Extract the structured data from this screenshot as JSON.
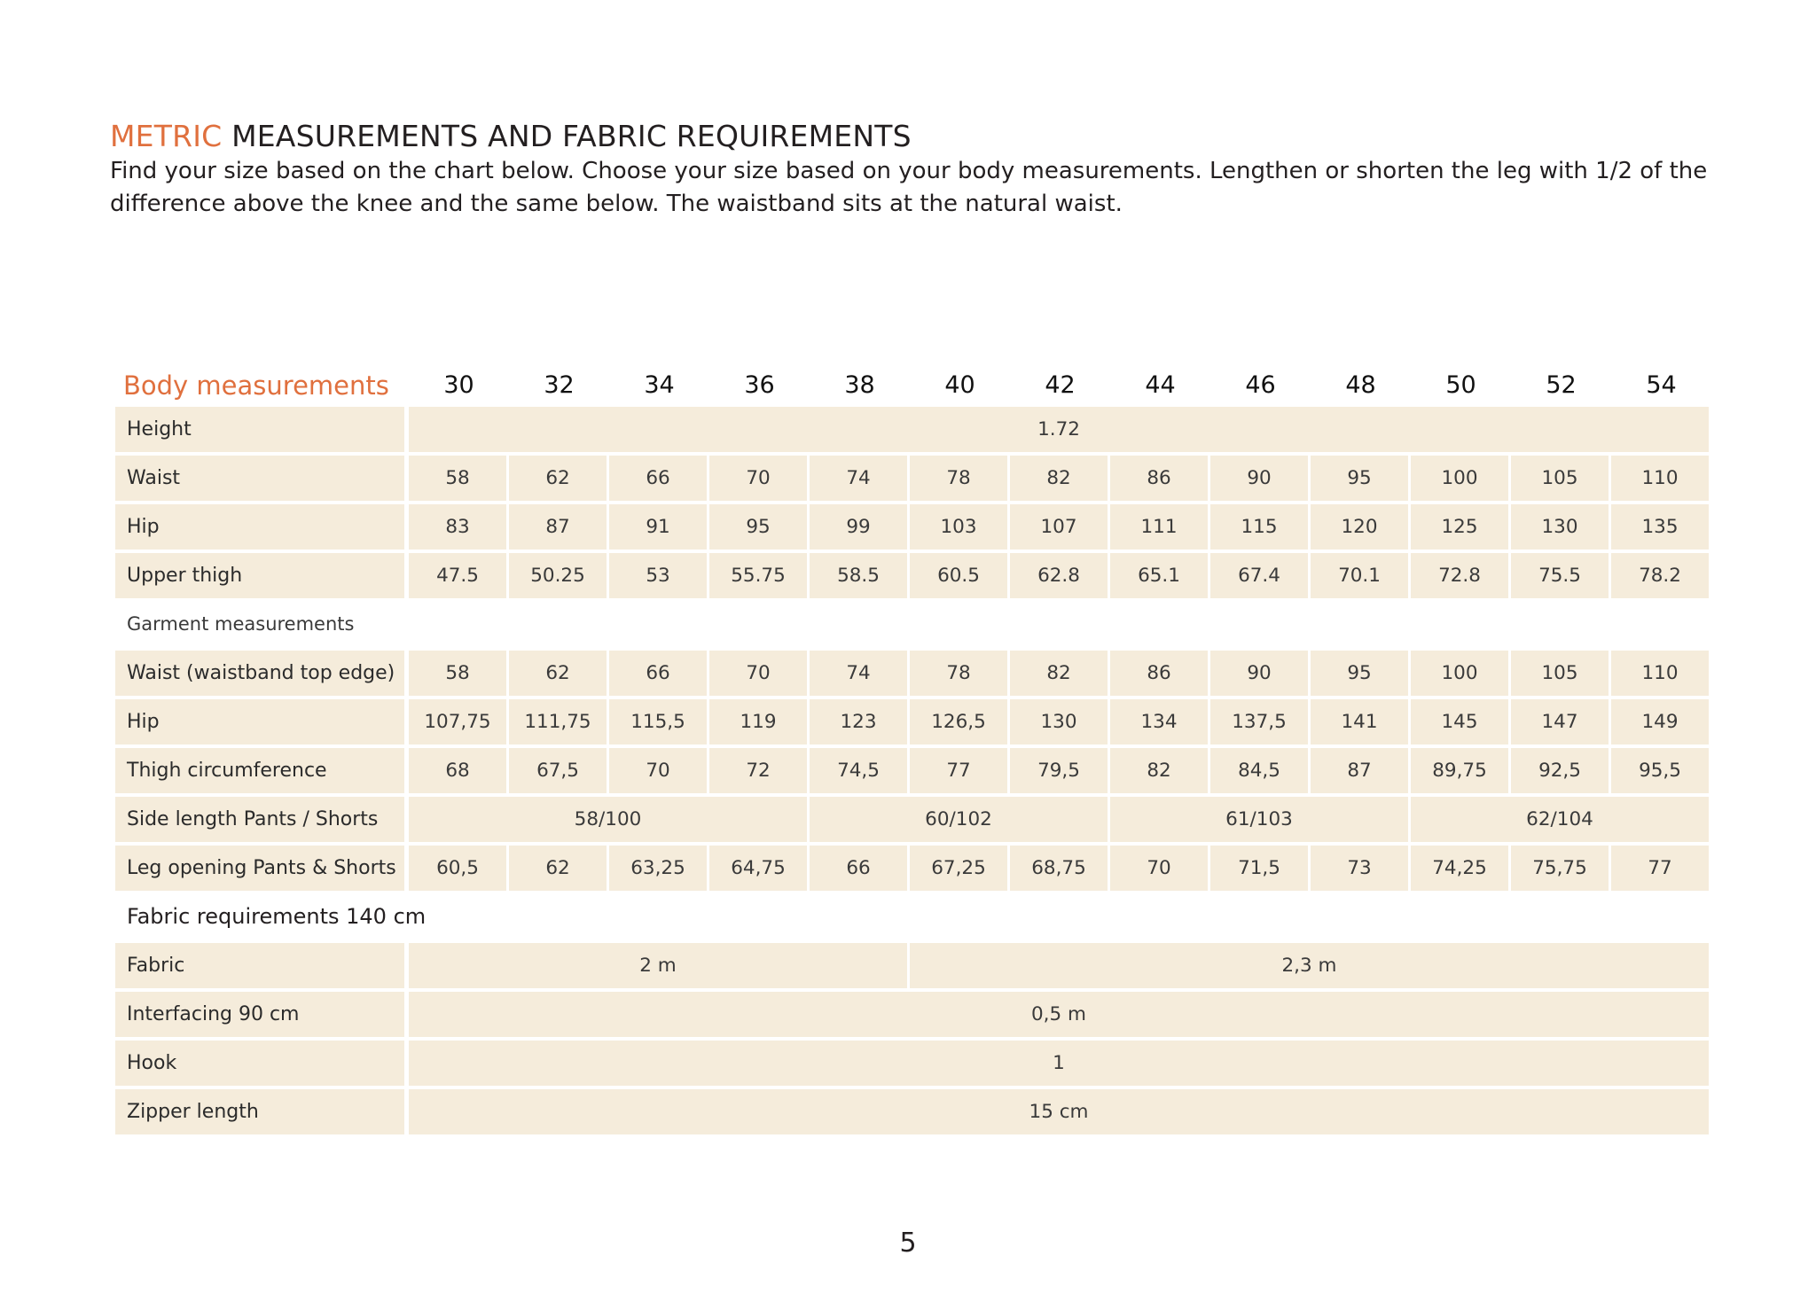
{
  "heading": {
    "accent": "METRIC",
    "rest": " MEASUREMENTS AND FABRIC REQUIREMENTS",
    "intro": "Find your size based on the chart below. Choose your size based on your body measurements. Lengthen or shorten the leg with 1/2 of the difference above the knee and the same below. The waistband sits at the natural waist."
  },
  "table": {
    "corner_label": "Body measurements",
    "sizes": [
      "30",
      "32",
      "34",
      "36",
      "38",
      "40",
      "42",
      "44",
      "46",
      "48",
      "50",
      "52",
      "54"
    ],
    "sections": [
      {
        "title": "",
        "rows": [
          {
            "label": "Height",
            "cells": [
              {
                "span": 13,
                "value": "1.72"
              }
            ]
          },
          {
            "label": "Waist",
            "values": [
              "58",
              "62",
              "66",
              "70",
              "74",
              "78",
              "82",
              "86",
              "90",
              "95",
              "100",
              "105",
              "110"
            ]
          },
          {
            "label": "Hip",
            "values": [
              "83",
              "87",
              "91",
              "95",
              "99",
              "103",
              "107",
              "111",
              "115",
              "120",
              "125",
              "130",
              "135"
            ]
          },
          {
            "label": "Upper thigh",
            "values": [
              "47.5",
              "50.25",
              "53",
              "55.75",
              "58.5",
              "60.5",
              "62.8",
              "65.1",
              "67.4",
              "70.1",
              "72.8",
              "75.5",
              "78.2"
            ]
          }
        ]
      },
      {
        "title": "Garment measurements",
        "rows": [
          {
            "label": "Waist (waistband top edge)",
            "values": [
              "58",
              "62",
              "66",
              "70",
              "74",
              "78",
              "82",
              "86",
              "90",
              "95",
              "100",
              "105",
              "110"
            ]
          },
          {
            "label": "Hip",
            "values": [
              "107,75",
              "111,75",
              "115,5",
              "119",
              "123",
              "126,5",
              "130",
              "134",
              "137,5",
              "141",
              "145",
              "147",
              "149"
            ]
          },
          {
            "label": "Thigh circumference",
            "values": [
              "68",
              "67,5",
              "70",
              "72",
              "74,5",
              "77",
              "79,5",
              "82",
              "84,5",
              "87",
              "89,75",
              "92,5",
              "95,5"
            ]
          },
          {
            "label": "Side length Pants / Shorts",
            "cells": [
              {
                "span": 4,
                "value": "58/100"
              },
              {
                "span": 3,
                "value": "60/102"
              },
              {
                "span": 3,
                "value": "61/103"
              },
              {
                "span": 3,
                "value": "62/104"
              }
            ]
          },
          {
            "label": "Leg opening Pants & Shorts",
            "values": [
              "60,5",
              "62",
              "63,25",
              "64,75",
              "66",
              "67,25",
              "68,75",
              "70",
              "71,5",
              "73",
              "74,25",
              "75,75",
              "77"
            ]
          }
        ]
      },
      {
        "title": "Fabric requirements 140 cm",
        "big": true,
        "rows": [
          {
            "label": "Fabric",
            "cells": [
              {
                "span": 5,
                "value": "2 m"
              },
              {
                "span": 8,
                "value": "2,3 m"
              }
            ]
          },
          {
            "label": "Interfacing 90 cm",
            "cells": [
              {
                "span": 13,
                "value": "0,5 m"
              }
            ]
          },
          {
            "label": "Hook",
            "cells": [
              {
                "span": 13,
                "value": "1"
              }
            ]
          },
          {
            "label": "Zipper length",
            "cells": [
              {
                "span": 13,
                "value": "15 cm"
              }
            ]
          }
        ]
      }
    ]
  },
  "footer": {
    "page_number": "5"
  }
}
